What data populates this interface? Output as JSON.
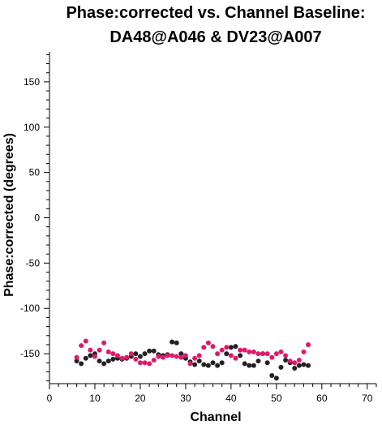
{
  "chart_data": {
    "type": "scatter",
    "title_line1": "Phase:corrected vs. Channel Baseline:",
    "title_line2": "DA48@A046 & DV23@A007",
    "xlabel": "Channel",
    "ylabel": "Phase:corrected (degrees)",
    "xlim": [
      0,
      72
    ],
    "ylim": [
      -183,
      183
    ],
    "x_ticks": [
      0,
      10,
      20,
      30,
      40,
      50,
      60,
      70
    ],
    "y_ticks": [
      150,
      100,
      50,
      0,
      -50,
      -100,
      -150
    ],
    "grid": false,
    "colors": {
      "series_a": "#222222",
      "series_b": "#e0196c",
      "axis": "#000000"
    },
    "series": [
      {
        "x": [
          6,
          7,
          8,
          9,
          10,
          11,
          12,
          13,
          14,
          15,
          16,
          17,
          18,
          19,
          20,
          21,
          22,
          23,
          24,
          25,
          26,
          27,
          28,
          29,
          30,
          31,
          32,
          33,
          34,
          35,
          36,
          37,
          38,
          39,
          40,
          41,
          42,
          43,
          44,
          45,
          46,
          47,
          48,
          49,
          50,
          51,
          52,
          53,
          54,
          55,
          56,
          57
        ],
        "y": [
          -158,
          -161,
          -155,
          -152,
          -150,
          -158,
          -161,
          -158,
          -156,
          -155,
          -156,
          -155,
          -153,
          -150,
          -153,
          -150,
          -147,
          -147,
          -151,
          -152,
          -151,
          -137,
          -138,
          -150,
          -155,
          -159,
          -162,
          -158,
          -162,
          -163,
          -160,
          -163,
          -160,
          -150,
          -143,
          -142,
          -152,
          -161,
          -163,
          -163,
          -158,
          -150,
          -160,
          -174,
          -177,
          -165,
          -157,
          -160,
          -166,
          -163,
          -162,
          -163
        ]
      },
      {
        "x": [
          6,
          7,
          8,
          9,
          10,
          11,
          12,
          13,
          14,
          15,
          16,
          17,
          18,
          19,
          20,
          21,
          22,
          23,
          24,
          25,
          26,
          27,
          28,
          29,
          30,
          31,
          32,
          33,
          34,
          35,
          36,
          37,
          38,
          39,
          40,
          41,
          42,
          43,
          44,
          45,
          46,
          47,
          48,
          49,
          50,
          51,
          52,
          53,
          54,
          55,
          56,
          57
        ],
        "y": [
          -154,
          -141,
          -136,
          -146,
          -153,
          -146,
          -138,
          -148,
          -150,
          -152,
          -155,
          -154,
          -150,
          -156,
          -160,
          -160,
          -161,
          -157,
          -153,
          -154,
          -152,
          -152,
          -153,
          -154,
          -152,
          -161,
          -155,
          -152,
          -143,
          -138,
          -142,
          -150,
          -146,
          -143,
          -152,
          -155,
          -146,
          -146,
          -148,
          -148,
          -150,
          -150,
          -150,
          -154,
          -150,
          -148,
          -152,
          -158,
          -160,
          -157,
          -148,
          -140
        ]
      }
    ]
  }
}
